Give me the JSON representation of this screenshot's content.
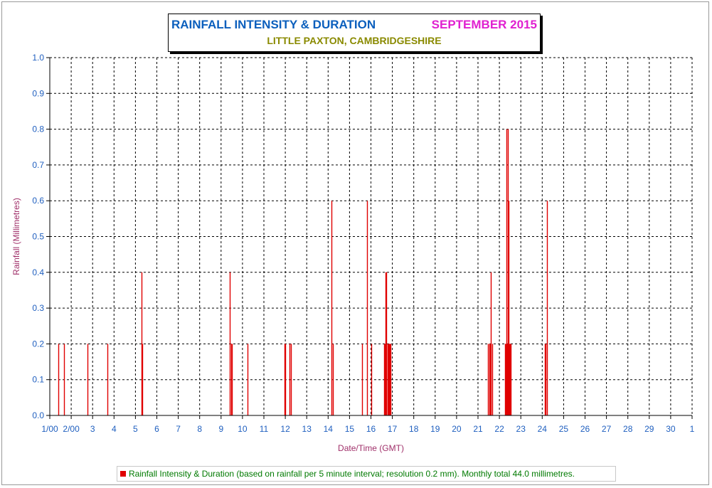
{
  "title": {
    "main": "RAINFALL INTENSITY & DURATION",
    "month": "SEPTEMBER 2015",
    "subtitle": "LITTLE PAXTON, CAMBRIDGESHIRE"
  },
  "legend": {
    "text": "Rainfall Intensity & Duration (based on rainfall per 5 minute interval; resolution 0.2 mm). Monthly total 44.0 millimetres.",
    "color": "#e00000"
  },
  "chart_data": {
    "type": "bar",
    "xlabel": "Date/Time (GMT)",
    "ylabel": "Rainfall (Millimetres)",
    "xlim": [
      1.0,
      31.0
    ],
    "ylim": [
      0.0,
      1.0
    ],
    "grid": true,
    "legend_position": "bottom",
    "y_ticks": [
      "0.0",
      "0.1",
      "0.2",
      "0.3",
      "0.4",
      "0.5",
      "0.6",
      "0.7",
      "0.8",
      "0.9",
      "1.0"
    ],
    "x_ticks": [
      "1/00",
      "2/00",
      "3",
      "4",
      "5",
      "6",
      "7",
      "8",
      "9",
      "10",
      "11",
      "12",
      "13",
      "14",
      "15",
      "16",
      "17",
      "18",
      "19",
      "20",
      "21",
      "22",
      "23",
      "24",
      "25",
      "26",
      "27",
      "28",
      "29",
      "30",
      "1"
    ],
    "series": [
      {
        "color": "#e00000",
        "points": [
          {
            "x": 1.4,
            "y": 0.2
          },
          {
            "x": 1.65,
            "y": 0.2
          },
          {
            "x": 2.75,
            "y": 0.2
          },
          {
            "x": 3.7,
            "y": 0.2
          },
          {
            "x": 5.27,
            "y": 0.4
          },
          {
            "x": 5.31,
            "y": 0.2
          },
          {
            "x": 9.42,
            "y": 0.4
          },
          {
            "x": 9.46,
            "y": 0.2
          },
          {
            "x": 9.5,
            "y": 0.2
          },
          {
            "x": 10.23,
            "y": 0.2
          },
          {
            "x": 11.97,
            "y": 0.2
          },
          {
            "x": 12.01,
            "y": 0.2
          },
          {
            "x": 12.2,
            "y": 0.2
          },
          {
            "x": 12.26,
            "y": 0.2
          },
          {
            "x": 14.17,
            "y": 0.6
          },
          {
            "x": 14.21,
            "y": 0.2
          },
          {
            "x": 15.6,
            "y": 0.2
          },
          {
            "x": 15.82,
            "y": 0.6
          },
          {
            "x": 16.03,
            "y": 0.2
          },
          {
            "x": 16.6,
            "y": 0.2
          },
          {
            "x": 16.64,
            "y": 0.2
          },
          {
            "x": 16.67,
            "y": 0.4
          },
          {
            "x": 16.7,
            "y": 0.2
          },
          {
            "x": 16.73,
            "y": 0.4
          },
          {
            "x": 16.77,
            "y": 0.2
          },
          {
            "x": 16.8,
            "y": 0.2
          },
          {
            "x": 16.84,
            "y": 0.2
          },
          {
            "x": 16.88,
            "y": 0.2
          },
          {
            "x": 16.92,
            "y": 0.2
          },
          {
            "x": 21.47,
            "y": 0.2
          },
          {
            "x": 21.53,
            "y": 0.2
          },
          {
            "x": 21.57,
            "y": 0.2
          },
          {
            "x": 21.61,
            "y": 0.4
          },
          {
            "x": 21.65,
            "y": 0.2
          },
          {
            "x": 22.27,
            "y": 0.2
          },
          {
            "x": 22.3,
            "y": 0.2
          },
          {
            "x": 22.33,
            "y": 0.8
          },
          {
            "x": 22.36,
            "y": 0.2
          },
          {
            "x": 22.39,
            "y": 0.8
          },
          {
            "x": 22.42,
            "y": 0.6
          },
          {
            "x": 22.45,
            "y": 0.2
          },
          {
            "x": 22.48,
            "y": 0.2
          },
          {
            "x": 22.52,
            "y": 0.2
          },
          {
            "x": 24.12,
            "y": 0.2
          },
          {
            "x": 24.17,
            "y": 0.2
          },
          {
            "x": 24.22,
            "y": 0.6
          }
        ]
      }
    ]
  }
}
